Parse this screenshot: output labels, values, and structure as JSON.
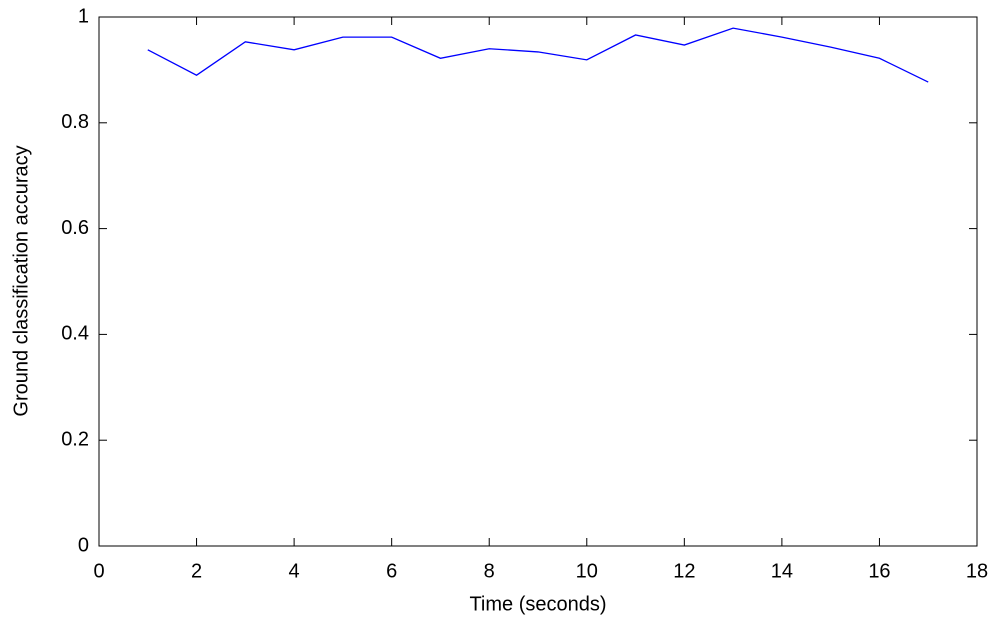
{
  "chart_data": {
    "type": "line",
    "xlabel": "Time (seconds)",
    "ylabel": "Ground classification accuracy",
    "x": [
      1,
      2,
      3,
      4,
      5,
      6,
      7,
      8,
      9,
      10,
      11,
      12,
      13,
      14,
      15,
      16,
      17
    ],
    "values": [
      0.938,
      0.89,
      0.953,
      0.938,
      0.962,
      0.962,
      0.922,
      0.94,
      0.934,
      0.919,
      0.966,
      0.947,
      0.979,
      0.962,
      0.943,
      0.922,
      0.877
    ],
    "color": "#0000ff",
    "xlim": [
      0,
      18
    ],
    "xticks": [
      0,
      2,
      4,
      6,
      8,
      10,
      12,
      14,
      16,
      18
    ],
    "ylim": [
      0,
      1
    ],
    "yticks": [
      0,
      0.2,
      0.4,
      0.6,
      0.8,
      1
    ]
  }
}
